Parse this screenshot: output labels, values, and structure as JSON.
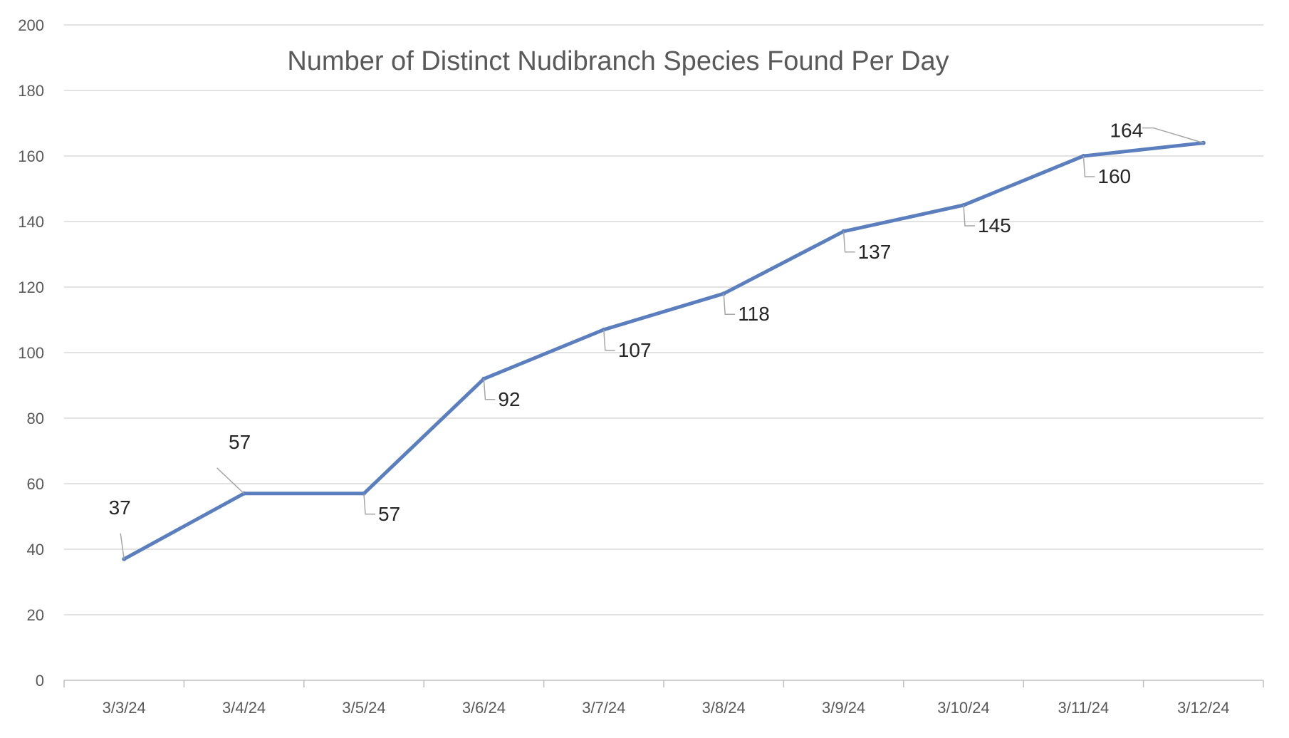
{
  "chart_data": {
    "type": "line",
    "title": "Number of Distinct Nudibranch Species Found Per Day",
    "xlabel": "",
    "ylabel": "",
    "categories": [
      "3/3/24",
      "3/4/24",
      "3/5/24",
      "3/6/24",
      "3/7/24",
      "3/8/24",
      "3/9/24",
      "3/10/24",
      "3/11/24",
      "3/12/24"
    ],
    "series": [
      {
        "values": [
          37,
          57,
          57,
          92,
          107,
          118,
          137,
          145,
          160,
          164
        ]
      }
    ],
    "data_labels": [
      "37",
      "57",
      "57",
      "92",
      "107",
      "118",
      "137",
      "145",
      "160",
      "164"
    ],
    "ylim": [
      0,
      200
    ],
    "yticks": [
      "0",
      "20",
      "40",
      "60",
      "80",
      "100",
      "120",
      "140",
      "160",
      "180",
      "200"
    ],
    "grid": true,
    "legend": "none",
    "colors": {
      "series": "#5b7fbe",
      "grid": "#d9d9d9",
      "text": "#595959"
    }
  }
}
